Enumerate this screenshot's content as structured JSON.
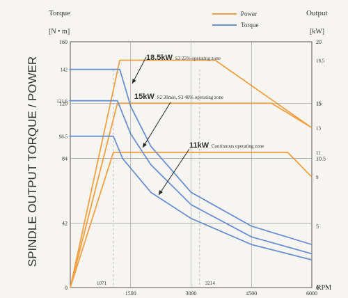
{
  "chart_data": {
    "type": "line",
    "title": "",
    "ylabel_vertical": "SPINDLE OUTPUT TORQUE / POWER",
    "left_axis": {
      "label_line1": "Torque",
      "label_line2": "[N • m]",
      "range": [
        0,
        160
      ],
      "ticks": [
        "160",
        "120",
        "84",
        "42",
        "0"
      ],
      "marker_labels": [
        "142",
        "121.6",
        "98.5"
      ]
    },
    "right_axis": {
      "label_line1": "Output",
      "label_line2": "[kW]",
      "range": [
        0,
        20
      ],
      "ticks": [
        "20",
        "15",
        "10.5",
        "5",
        "0"
      ],
      "marker_labels": [
        "18.5",
        "15",
        "13",
        "11",
        "9"
      ]
    },
    "x_axis": {
      "label": "RPM",
      "range": [
        0,
        6000
      ],
      "ticks": [
        "1500",
        "3000",
        "4500",
        "6000"
      ],
      "marker_labels": [
        "1071",
        "3214"
      ]
    },
    "legend": [
      {
        "name": "Power",
        "color": "#f0a040"
      },
      {
        "name": "Torque",
        "color": "#6a8fd0"
      }
    ],
    "annotations": [
      {
        "bold": "18.5kW",
        "text": "S3 25% operating zone"
      },
      {
        "bold": "15kW",
        "text": "S2 30min, S3 40% operating zone"
      },
      {
        "bold": "11kW",
        "text": "Continuous operating zone"
      }
    ],
    "series": [
      {
        "name": "Power",
        "zone": "18.5kW",
        "color": "#f0a040",
        "x": [
          0,
          1230,
          3600,
          6000
        ],
        "y": [
          0,
          18.5,
          18.5,
          13
        ]
      },
      {
        "name": "Power",
        "zone": "15kW",
        "color": "#f0a040",
        "x": [
          0,
          1170,
          5000,
          6000
        ],
        "y": [
          0,
          15,
          15,
          13
        ]
      },
      {
        "name": "Power",
        "zone": "11kW",
        "color": "#f0a040",
        "x": [
          0,
          1071,
          5400,
          6000
        ],
        "y": [
          0,
          11,
          11,
          9
        ]
      },
      {
        "name": "Torque",
        "zone": "18.5kW",
        "color": "#6a8fd0",
        "x": [
          0,
          1230,
          1500,
          2000,
          3000,
          4500,
          6000
        ],
        "y": [
          142,
          142,
          118,
          92,
          62,
          40,
          28
        ]
      },
      {
        "name": "Torque",
        "zone": "15kW",
        "color": "#6a8fd0",
        "x": [
          0,
          1170,
          1500,
          2000,
          3000,
          4500,
          6000
        ],
        "y": [
          121.6,
          121.6,
          100,
          80,
          54,
          33,
          22
        ]
      },
      {
        "name": "Torque",
        "zone": "11kW",
        "color": "#6a8fd0",
        "x": [
          0,
          1071,
          1300,
          2000,
          3000,
          4500,
          6000
        ],
        "y": [
          98.5,
          98.5,
          84,
          62,
          45,
          28,
          18
        ]
      }
    ]
  }
}
